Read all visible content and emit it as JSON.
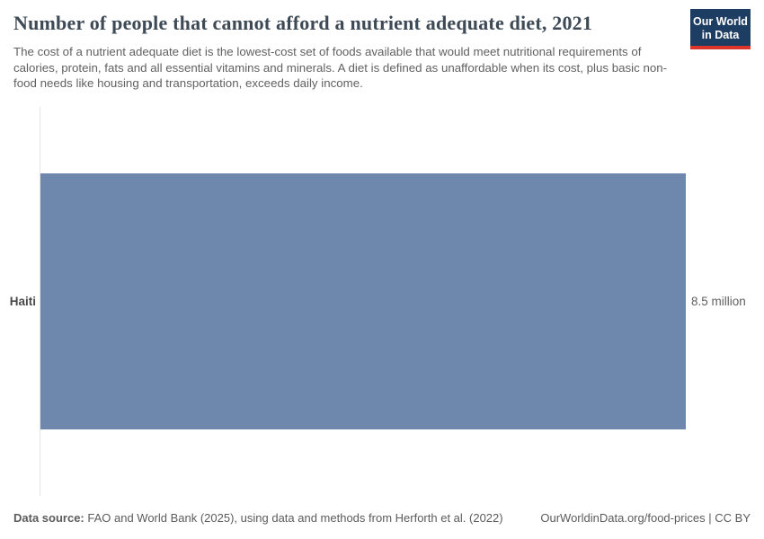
{
  "header": {
    "title": "Number of people that cannot afford a nutrient adequate diet, 2021",
    "subtitle": "The cost of a nutrient adequate diet is the lowest-cost set of foods available that would meet nutritional requirements of calories, protein, fats and all essential vitamins and minerals. A diet is defined as unaffordable when its cost, plus basic non-food needs like housing and transportation, exceeds daily income."
  },
  "logo": {
    "line1": "Our World",
    "line2": "in Data",
    "bg_color": "#1d3d63",
    "accent_color": "#dc352c"
  },
  "chart_data": {
    "type": "bar",
    "orientation": "horizontal",
    "title": "Number of people that cannot afford a nutrient adequate diet, 2021",
    "categories": [
      "Haiti"
    ],
    "values": [
      8500000
    ],
    "value_labels": [
      "8.5 million"
    ],
    "xlabel": "",
    "ylabel": "",
    "xlim": [
      0,
      8500000
    ],
    "grid": false,
    "legend": "none",
    "bar_color": "#6e87ad",
    "axis_line_color": "#e4e4e4"
  },
  "footer": {
    "source_label": "Data source:",
    "source_text": " FAO and World Bank (2025), using data and methods from Herforth et al. (2022)",
    "link_text": "OurWorldinData.org/food-prices | CC BY"
  }
}
